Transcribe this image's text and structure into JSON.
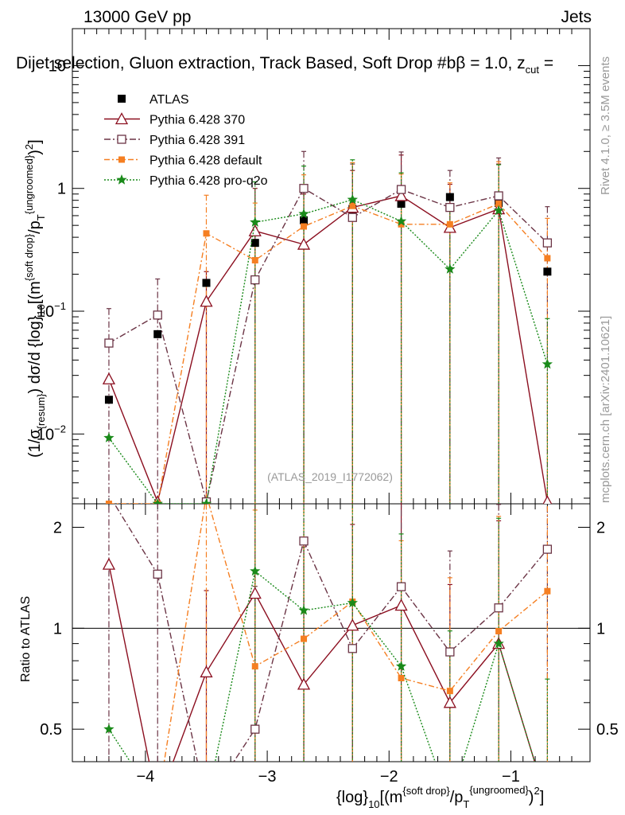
{
  "header": {
    "energy": "13000 GeV pp",
    "category": "Jets",
    "title": "Dijet selection, Gluon extraction, Track Based, Soft Drop #beta = 1.0, z_cut = ...",
    "title_main": "Dijet selection, Gluon extraction, Track Based, Soft Drop #b",
    "title_beta": "β = 1.0, z",
    "title_cut": "cut",
    "title_eq": " ="
  },
  "side": {
    "rivet": "Rivet 4.1.0, ≥ 3.5M events",
    "mcplots": "mcplots.cern.ch [arXiv:2401.10621]"
  },
  "watermark": "(ATLAS_2019_I1772062)",
  "axes": {
    "ylabel_upper": "(1/σ{resum}) dσ/d {log}10[(m{soft drop}/pT{ungroomed})2]",
    "ylabel_lower": "Ratio to ATLAS",
    "xlabel": "{log}10[(m{soft drop}/pT{ungroomed})2]",
    "xticks": [
      "−4",
      "−3",
      "−2",
      "−1"
    ],
    "upper_yticks": [
      "10",
      "1",
      "10",
      "10"
    ],
    "lower_yticks": [
      "2",
      "1",
      "0.5"
    ]
  },
  "legend": {
    "items": [
      "ATLAS",
      "Pythia 6.428 370",
      "Pythia 6.428 391",
      "Pythia 6.428 default",
      "Pythia 6.428 pro-q2o"
    ]
  },
  "chart_data": {
    "type": "scatter",
    "title": "Dijet selection, Gluon extraction, Track Based, Soft Drop beta = 1.0",
    "xlabel": "{log}10[(m{soft drop}/pT{ungroomed})2]",
    "ylabel": "(1/sigma{resum}) dsigma/d {log}10[(m{soft drop}/pT{ungroomed})2]",
    "xlim": [
      -4.6,
      -0.35
    ],
    "ylim_upper": [
      0.0027,
      20
    ],
    "ylim_lower": [
      0.4,
      2.35
    ],
    "yscale_upper": "log",
    "yscale_lower": "log",
    "x": [
      -4.3,
      -3.9,
      -3.5,
      -3.1,
      -2.7,
      -2.3,
      -1.9,
      -1.5,
      -1.1,
      -0.7
    ],
    "colors": {
      "ATLAS": "#000000",
      "Pythia 6.428 370": "#8b0e1f",
      "Pythia 6.428 391": "#6b3445",
      "Pythia 6.428 default": "#f57f22",
      "Pythia 6.428 pro-q2o": "#1a8a1a"
    },
    "series": [
      {
        "name": "ATLAS",
        "values": [
          0.019,
          0.065,
          0.17,
          0.36,
          0.55,
          0.68,
          0.75,
          0.85,
          0.76,
          0.21
        ]
      },
      {
        "name": "Pythia 6.428 370",
        "values": [
          0.028,
          0.0028,
          0.12,
          0.45,
          0.35,
          0.7,
          0.87,
          0.48,
          0.68,
          0.0028
        ],
        "err_up": [
          0.0,
          0.0,
          0.09,
          0.55,
          0.55,
          0.7,
          1.0,
          0.6,
          0.9,
          0.0
        ],
        "ratio": [
          1.55,
          0.3,
          0.74,
          1.27,
          0.68,
          1.02,
          1.17,
          0.6,
          0.9,
          0.3
        ]
      },
      {
        "name": "Pythia 6.428 391",
        "values": [
          0.055,
          0.093,
          0.0028,
          0.18,
          1.0,
          0.58,
          0.98,
          0.7,
          0.87,
          0.36
        ],
        "err_up": [
          0.05,
          0.09,
          0.0,
          0.3,
          1.0,
          1.0,
          1.0,
          0.7,
          0.9,
          0.35
        ],
        "ratio": [
          2.5,
          1.45,
          0.3,
          0.5,
          1.82,
          0.87,
          1.33,
          0.85,
          1.15,
          1.72
        ]
      },
      {
        "name": "Pythia 6.428 default",
        "values": [
          0.0027,
          0.0027,
          0.43,
          0.26,
          0.49,
          0.72,
          0.51,
          0.51,
          0.75,
          0.27
        ],
        "err_up": [
          0.0,
          0.0,
          0.45,
          0.5,
          0.8,
          0.9,
          0.8,
          0.6,
          0.9,
          0.3
        ],
        "ratio": [
          0.3,
          0.3,
          2.5,
          0.77,
          0.93,
          1.2,
          0.71,
          0.65,
          0.98,
          1.29
        ]
      },
      {
        "name": "Pythia 6.428 pro-q2o",
        "values": [
          0.0093,
          0.0027,
          0.0027,
          0.53,
          0.62,
          0.81,
          0.54,
          0.22,
          0.66,
          0.037
        ],
        "err_up": [
          0.0,
          0.0,
          0.0,
          0.6,
          0.9,
          0.9,
          0.8,
          0.5,
          0.9,
          0.05
        ],
        "ratio": [
          0.5,
          0.3,
          0.3,
          1.48,
          1.13,
          1.19,
          0.77,
          0.3,
          0.9,
          0.3
        ]
      }
    ]
  }
}
